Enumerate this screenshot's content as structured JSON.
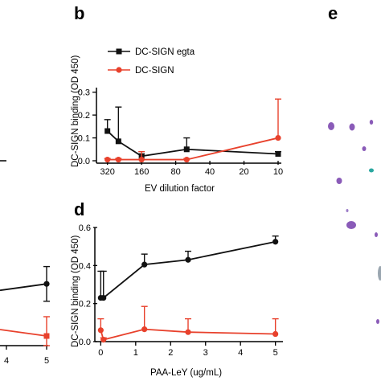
{
  "panels": {
    "b_letter": "b",
    "d_letter": "d",
    "e_letter": "e"
  },
  "colors": {
    "black_series": "#111111",
    "red_series": "#e8412c",
    "dot_purple": "#8a5bb8",
    "dot_teal": "#2aa7a0"
  },
  "chart_data": [
    {
      "id": "b",
      "type": "line",
      "xscale": "log-reversed",
      "xlabel": "EV dilution factor",
      "ylabel": "DC-SIGN binding (OD 450)",
      "xticks": [
        320,
        160,
        80,
        40,
        20,
        10
      ],
      "xtick_labels": [
        "320",
        "160",
        "80",
        "40",
        "20",
        "10"
      ],
      "xlim": [
        400,
        10
      ],
      "ylim": [
        0,
        0.32
      ],
      "yticks": [
        0,
        0.1,
        0.2,
        0.3
      ],
      "ytick_labels": [
        "0.0",
        "0.1",
        "0.2",
        "0.3"
      ],
      "legend": "top-left",
      "series": [
        {
          "name": "DC-SIGN egta",
          "color": "#111111",
          "marker": "square",
          "x": [
            320,
            256,
            160,
            64,
            10
          ],
          "y": [
            0.13,
            0.085,
            0.02,
            0.05,
            0.03
          ],
          "err": [
            0.05,
            0.15,
            0.01,
            0.05,
            0.01
          ]
        },
        {
          "name": "DC-SIGN",
          "color": "#e8412c",
          "marker": "circle",
          "x": [
            320,
            256,
            160,
            64,
            10
          ],
          "y": [
            0.005,
            0.005,
            0.005,
            0.005,
            0.1
          ],
          "err": [
            0.005,
            0.005,
            0.035,
            0.005,
            0.17
          ]
        }
      ]
    },
    {
      "id": "d",
      "type": "line",
      "xlabel": "PAA-LeY (ug/mL)",
      "ylabel": "DC-SIGN binding (OD 450)",
      "xlim": [
        -0.1,
        5.1
      ],
      "ylim": [
        0,
        0.6
      ],
      "xticks": [
        0,
        1,
        2,
        3,
        4,
        5
      ],
      "xtick_labels": [
        "0",
        "1",
        "2",
        "3",
        "4",
        "5"
      ],
      "yticks": [
        0,
        0.2,
        0.4,
        0.6
      ],
      "ytick_labels": [
        "0.0",
        "0.2",
        "0.4",
        "0.6"
      ],
      "series": [
        {
          "name": "black",
          "color": "#111111",
          "marker": "circle",
          "x": [
            0,
            0.078,
            1.25,
            2.5,
            5
          ],
          "y": [
            0.23,
            0.23,
            0.405,
            0.43,
            0.525
          ],
          "err": [
            0.14,
            0.14,
            0.055,
            0.045,
            0.03
          ]
        },
        {
          "name": "red",
          "color": "#e8412c",
          "marker": "circle",
          "x": [
            0,
            0.078,
            1.25,
            2.5,
            5
          ],
          "y": [
            0.06,
            0.01,
            0.065,
            0.05,
            0.04
          ],
          "err": [
            0.06,
            0.01,
            0.12,
            0.07,
            0.08
          ]
        }
      ]
    },
    {
      "id": "c-partial",
      "type": "line",
      "xlim": [
        0,
        5
      ],
      "xticks": [
        4,
        5
      ],
      "xtick_labels": [
        "4",
        "5"
      ],
      "series": [
        {
          "name": "black",
          "color": "#111111",
          "marker": "circle",
          "x": [
            5
          ],
          "y": [
            0.32
          ],
          "err": [
            0.09
          ]
        },
        {
          "name": "red",
          "color": "#e8412c",
          "marker": "square",
          "x": [
            5
          ],
          "y": [
            0.05
          ],
          "err": [
            0.1
          ]
        }
      ]
    }
  ]
}
